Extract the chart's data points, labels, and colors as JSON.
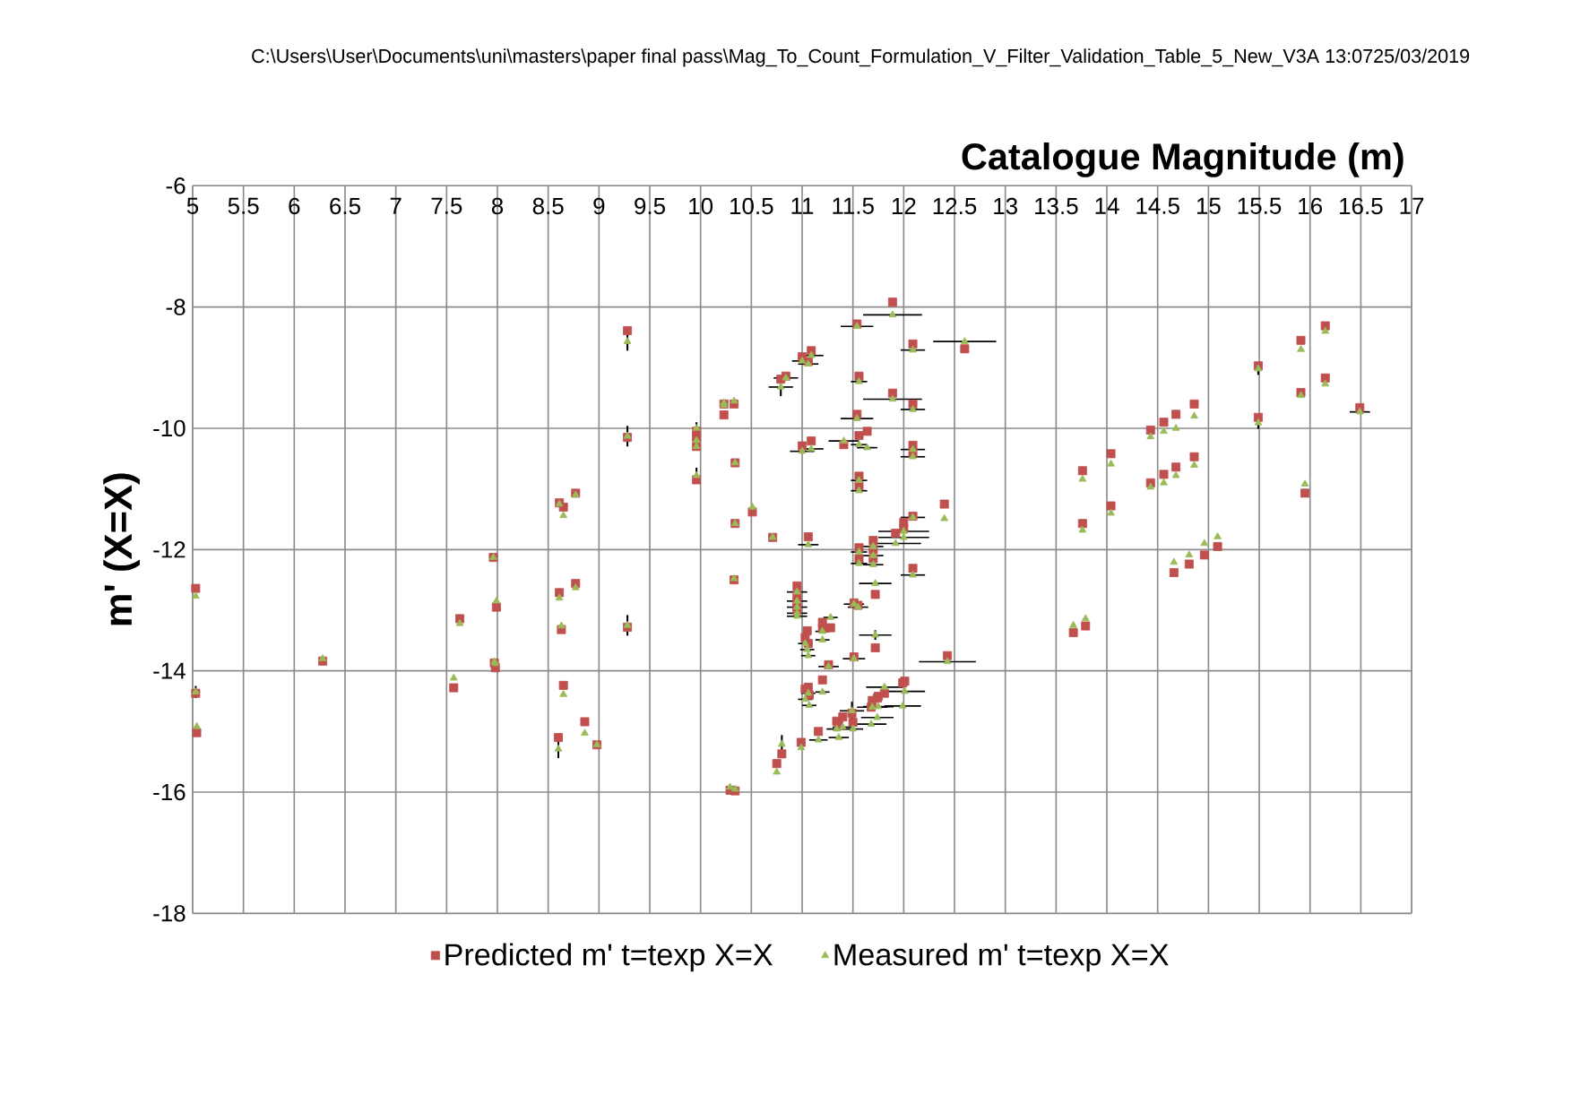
{
  "chart_data": {
    "type": "scatter",
    "xlabel": "Catalogue Magnitude (m)",
    "ylabel": "m' (X=X)",
    "annotations": [
      "C:\\Users\\User\\Documents\\uni\\masters\\paper final pass\\Mag_To_Count_Formulation_V_Filter_Validation_Table_5_New_V3A  13:0725/03/2019"
    ],
    "xlim": [
      5,
      17
    ],
    "ylim": [
      -18,
      -6
    ],
    "xticks": [
      5,
      5.5,
      6,
      6.5,
      7,
      7.5,
      8,
      8.5,
      9,
      9.5,
      10,
      10.5,
      11,
      11.5,
      12,
      12.5,
      13,
      13.5,
      14,
      14.5,
      15,
      15.5,
      16,
      16.5,
      17
    ],
    "yticks": [
      -6,
      -8,
      -10,
      -12,
      -14,
      -16,
      -18
    ],
    "grid": true,
    "legend": "bottom",
    "x": [
      5.03,
      5.03,
      5.04,
      6.28,
      7.57,
      7.63,
      7.96,
      7.97,
      7.98,
      7.99,
      8.6,
      8.61,
      8.61,
      8.63,
      8.65,
      8.65,
      8.77,
      8.77,
      8.86,
      8.98,
      9.28,
      9.28,
      9.28,
      9.96,
      9.96,
      9.96,
      9.96,
      10.23,
      10.23,
      10.29,
      10.33,
      10.34,
      10.34,
      10.33,
      10.34,
      10.51,
      10.71,
      10.75,
      10.79,
      10.84,
      10.8,
      10.95,
      10.95,
      10.95,
      10.95,
      10.95,
      10.99,
      11.0,
      11.0,
      11.03,
      11.03,
      11.05,
      11.06,
      11.06,
      11.06,
      11.06,
      11.07,
      11.09,
      11.09,
      11.16,
      11.2,
      11.2,
      11.2,
      11.26,
      11.28,
      11.34,
      11.36,
      11.4,
      11.41,
      11.49,
      11.5,
      11.51,
      11.51,
      11.54,
      11.54,
      11.55,
      11.56,
      11.56,
      11.56,
      11.56,
      11.56,
      11.56,
      11.64,
      11.68,
      11.69,
      11.7,
      11.7,
      11.7,
      11.72,
      11.72,
      11.74,
      11.75,
      11.81,
      11.89,
      11.89,
      11.92,
      11.99,
      12.0,
      12.0,
      12.01,
      12.09,
      12.09,
      12.09,
      12.09,
      12.09,
      12.09,
      12.4,
      12.43,
      12.6,
      13.67,
      13.76,
      13.76,
      13.79,
      14.04,
      14.04,
      14.43,
      14.43,
      14.56,
      14.56,
      14.66,
      14.68,
      14.68,
      14.81,
      14.86,
      14.86,
      14.96,
      15.09,
      15.49,
      15.49,
      15.91,
      15.91,
      15.95,
      16.15,
      16.15,
      16.49
    ],
    "series": [
      {
        "name": "Predicted m' t=texp X=X",
        "color": "#c0504d",
        "marker": "square",
        "values": [
          -12.64,
          -14.37,
          -15.02,
          -13.84,
          -14.28,
          -13.14,
          -12.13,
          -13.87,
          -13.95,
          -12.95,
          -15.1,
          -11.23,
          -12.71,
          -13.32,
          -11.3,
          -14.24,
          -11.07,
          -12.56,
          -14.84,
          -15.22,
          -8.39,
          -10.15,
          -13.28,
          -10.05,
          -10.15,
          -10.3,
          -10.85,
          -9.6,
          -9.78,
          -15.97,
          -9.6,
          -10.57,
          -11.57,
          -12.5,
          -15.98,
          -11.38,
          -11.8,
          -15.53,
          -9.19,
          -9.14,
          -15.37,
          -12.6,
          -12.75,
          -12.85,
          -12.95,
          -13.0,
          -15.18,
          -8.82,
          -10.29,
          -13.45,
          -14.3,
          -13.34,
          -8.9,
          -11.79,
          -13.55,
          -14.27,
          -14.4,
          -8.72,
          -10.21,
          -15.0,
          -13.2,
          -13.3,
          -14.15,
          -13.9,
          -13.29,
          -14.83,
          -14.9,
          -14.76,
          -10.27,
          -14.7,
          -14.85,
          -12.88,
          -13.77,
          -8.28,
          -9.77,
          -12.92,
          -9.14,
          -10.12,
          -10.79,
          -10.95,
          -11.97,
          -12.15,
          -10.05,
          -14.6,
          -14.49,
          -11.85,
          -12.0,
          -12.15,
          -12.74,
          -13.62,
          -14.45,
          -14.42,
          -14.37,
          -7.92,
          -9.42,
          -11.73,
          -14.2,
          -11.55,
          -11.65,
          -14.17,
          -8.61,
          -9.6,
          -10.28,
          -10.4,
          -11.45,
          -12.31,
          -11.25,
          -13.75,
          -8.69,
          -13.37,
          -10.7,
          -11.57,
          -13.26,
          -10.42,
          -11.28,
          -10.03,
          -10.9,
          -9.9,
          -10.76,
          -12.38,
          -9.77,
          -10.64,
          -12.24,
          -9.6,
          -10.47,
          -12.09,
          -11.95,
          -8.97,
          -9.82,
          -8.55,
          -9.41,
          -11.07,
          -8.31,
          -9.17,
          -9.66
        ]
      },
      {
        "name": "Measured m' t=texp X=X",
        "color": "#9bbb59",
        "marker": "triangle",
        "values": [
          -12.77,
          -14.35,
          -14.92,
          -13.8,
          -14.12,
          -13.22,
          -12.13,
          -13.85,
          -13.88,
          -12.85,
          -15.29,
          -11.25,
          -12.8,
          -13.26,
          -11.44,
          -14.39,
          -11.1,
          -12.63,
          -15.03,
          -15.22,
          -8.57,
          -10.13,
          -13.25,
          -10.0,
          -10.2,
          -10.3,
          -10.78,
          -9.58,
          -9.62,
          -15.92,
          -9.55,
          -10.57,
          -11.57,
          -12.48,
          -15.95,
          -11.3,
          -11.8,
          -15.67,
          -9.32,
          -9.17,
          -15.21,
          -12.7,
          -12.85,
          -12.95,
          -13.05,
          -13.1,
          -15.27,
          -8.89,
          -10.38,
          -13.55,
          -14.47,
          -13.65,
          -8.94,
          -11.92,
          -13.75,
          -14.37,
          -14.57,
          -8.8,
          -10.34,
          -15.14,
          -13.49,
          -13.35,
          -14.35,
          -13.93,
          -13.12,
          -14.96,
          -15.1,
          -14.93,
          -10.21,
          -14.66,
          -14.96,
          -12.9,
          -13.8,
          -8.32,
          -9.84,
          -12.95,
          -9.23,
          -10.27,
          -10.86,
          -11.03,
          -12.04,
          -12.23,
          -10.32,
          -14.88,
          -14.6,
          -11.95,
          -12.1,
          -12.25,
          -12.56,
          -13.41,
          -14.77,
          -14.59,
          -14.27,
          -8.13,
          -9.52,
          -11.9,
          -14.58,
          -11.7,
          -11.8,
          -14.34,
          -8.71,
          -9.69,
          -10.35,
          -10.47,
          -11.47,
          -12.42,
          -11.49,
          -13.85,
          -8.57,
          -13.25,
          -10.84,
          -11.68,
          -13.14,
          -10.59,
          -11.4,
          -10.14,
          -10.97,
          -10.05,
          -10.9,
          -12.21,
          -10.0,
          -10.78,
          -12.09,
          -9.8,
          -10.61,
          -11.9,
          -11.79,
          -9.02,
          -9.91,
          -8.7,
          -9.46,
          -10.92,
          -8.4,
          -9.27,
          -9.73
        ],
        "errors": [
          null,
          0.1,
          null,
          null,
          null,
          null,
          null,
          null,
          null,
          null,
          0.15,
          null,
          null,
          null,
          null,
          null,
          null,
          null,
          null,
          null,
          0.15,
          0.17,
          0.17,
          0.1,
          null,
          null,
          0.13,
          null,
          null,
          null,
          null,
          null,
          null,
          null,
          null,
          null,
          null,
          null,
          0.15,
          null,
          0.15,
          null,
          null,
          null,
          null,
          null,
          null,
          null,
          null,
          null,
          null,
          null,
          null,
          null,
          null,
          null,
          null,
          null,
          null,
          null,
          null,
          null,
          null,
          null,
          null,
          null,
          null,
          null,
          null,
          0.15,
          null,
          null,
          null,
          null,
          null,
          null,
          null,
          null,
          null,
          null,
          null,
          null,
          null,
          null,
          null,
          null,
          null,
          null,
          null,
          0.08,
          null,
          null,
          null,
          null,
          null,
          null,
          null,
          null,
          null,
          null,
          null,
          null,
          null,
          null,
          null,
          null,
          null,
          null,
          null,
          null,
          null,
          null,
          null,
          null,
          null,
          null,
          null,
          null,
          null,
          null,
          null,
          null,
          null,
          null,
          null,
          null,
          null,
          0.1,
          0.1,
          null,
          null,
          null,
          null,
          null,
          null
        ],
        "xerrors": [
          null,
          null,
          null,
          null,
          null,
          null,
          null,
          null,
          null,
          null,
          null,
          null,
          null,
          null,
          null,
          null,
          null,
          null,
          null,
          null,
          null,
          null,
          null,
          null,
          null,
          null,
          null,
          0.03,
          null,
          0.03,
          null,
          null,
          null,
          null,
          null,
          null,
          null,
          null,
          0.12,
          0.12,
          null,
          0.1,
          0.1,
          0.1,
          0.1,
          0.1,
          null,
          0.1,
          0.12,
          0.07,
          0.07,
          0.07,
          0.1,
          0.1,
          0.07,
          0.07,
          0.07,
          0.12,
          0.12,
          0.09,
          0.07,
          0.07,
          0.07,
          0.1,
          0.07,
          0.1,
          0.1,
          0.1,
          0.15,
          0.12,
          0.1,
          0.1,
          0.11,
          0.16,
          0.16,
          0.1,
          0.08,
          0.08,
          0.08,
          0.08,
          0.08,
          0.08,
          0.1,
          0.15,
          0.15,
          0.1,
          0.1,
          0.1,
          0.16,
          0.16,
          0.16,
          0.15,
          0.18,
          0.29,
          0.29,
          0.25,
          0.18,
          0.25,
          0.25,
          0.2,
          0.12,
          0.12,
          0.12,
          0.12,
          0.12,
          0.12,
          null,
          0.28,
          0.31,
          null,
          null,
          null,
          null,
          null,
          null,
          null,
          null,
          null,
          null,
          null,
          null,
          null,
          null,
          null,
          null,
          null,
          null,
          null,
          null,
          null,
          null,
          null,
          null,
          null,
          0.1
        ]
      }
    ]
  }
}
